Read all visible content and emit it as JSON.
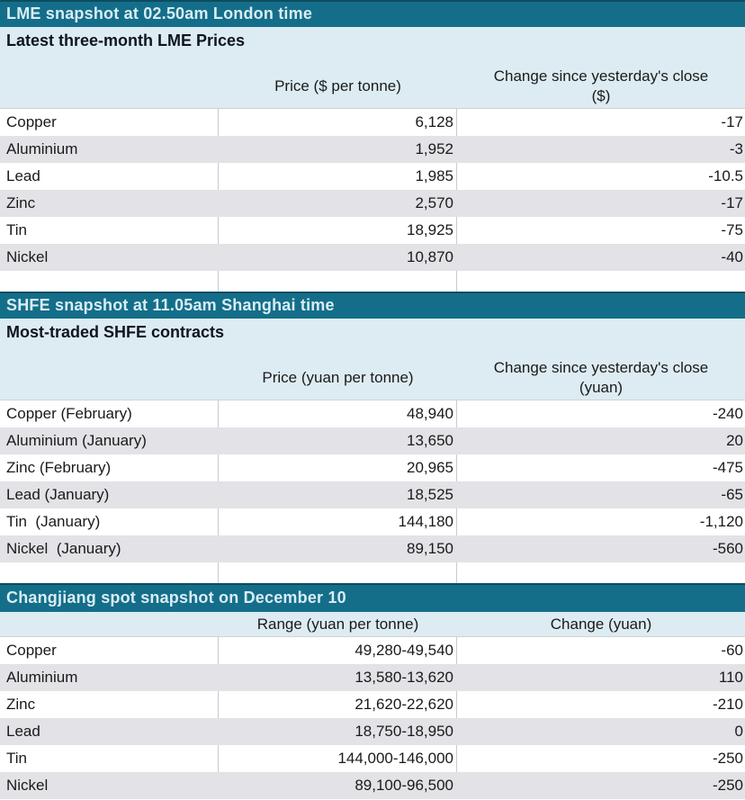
{
  "colors": {
    "section_header_bg": "#146e8a",
    "section_header_border_top": "#0d4c60",
    "section_header_text": "#d9edf3",
    "panel_bg": "#ddecf2",
    "alt_row_bg": "#e2e2e7",
    "row_bg": "#ffffff",
    "grid_line": "#c9cad0",
    "body_text": "#1a1a1a"
  },
  "chart_data": [
    {
      "type": "table",
      "title": "LME snapshot at 02.50am London time",
      "subtitle": "Latest three-month LME Prices",
      "columns": [
        "",
        "Price ($ per tonne)",
        "Change since yesterday's close ($)"
      ],
      "rows": [
        [
          "Copper",
          "6,128",
          "-17"
        ],
        [
          "Aluminium",
          "1,952",
          "-3"
        ],
        [
          "Lead",
          "1,985",
          "-10.5"
        ],
        [
          "Zinc",
          "2,570",
          "-17"
        ],
        [
          "Tin",
          "18,925",
          "-75"
        ],
        [
          "Nickel",
          "10,870",
          "-40"
        ]
      ]
    },
    {
      "type": "table",
      "title": "SHFE snapshot at 11.05am Shanghai time",
      "subtitle": "Most-traded SHFE contracts",
      "columns": [
        "",
        "Price (yuan per tonne)",
        "Change since yesterday's close (yuan)"
      ],
      "rows": [
        [
          "Copper (February)",
          "48,940",
          "-240"
        ],
        [
          "Aluminium (January)",
          "13,650",
          "20"
        ],
        [
          "Zinc (February)",
          "20,965",
          "-475"
        ],
        [
          "Lead (January)",
          "18,525",
          "-65"
        ],
        [
          "Tin  (January)",
          "144,180",
          "-1,120"
        ],
        [
          "Nickel  (January)",
          "89,150",
          "-560"
        ]
      ]
    },
    {
      "type": "table",
      "title": "Changjiang spot snapshot on December 10",
      "columns": [
        "",
        "Range (yuan per tonne)",
        "Change (yuan)"
      ],
      "rows": [
        [
          "Copper",
          "49,280-49,540",
          "-60"
        ],
        [
          "Aluminium",
          "13,580-13,620",
          "110"
        ],
        [
          "Zinc",
          "21,620-22,620",
          "-210"
        ],
        [
          "Lead",
          "18,750-18,950",
          "0"
        ],
        [
          "Tin",
          "144,000-146,000",
          "-250"
        ],
        [
          "Nickel",
          "89,100-96,500",
          "-250"
        ]
      ]
    }
  ]
}
